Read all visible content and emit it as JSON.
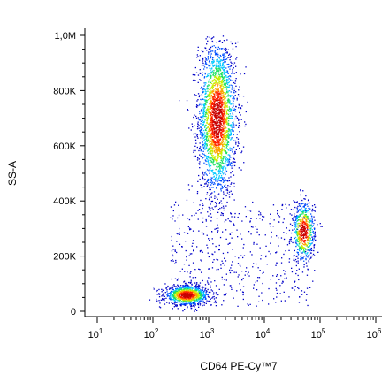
{
  "chart_data": {
    "type": "scatter",
    "subtype": "flow-cytometry-density-dot-plot",
    "xlabel": "CD64 PE-Cy™7",
    "ylabel": "SS-A",
    "x_scale": "log",
    "xlim": [
      10,
      1000000
    ],
    "ylim": [
      0,
      1000000
    ],
    "x_ticks": [
      {
        "value": 10,
        "base": "10",
        "exp": "1"
      },
      {
        "value": 100,
        "base": "10",
        "exp": "2"
      },
      {
        "value": 1000,
        "base": "10",
        "exp": "3"
      },
      {
        "value": 10000,
        "base": "10",
        "exp": "4"
      },
      {
        "value": 100000,
        "base": "10",
        "exp": "5"
      },
      {
        "value": 1000000,
        "base": "10",
        "exp": "6"
      }
    ],
    "y_ticks": [
      {
        "value": 0,
        "label": "0"
      },
      {
        "value": 200000,
        "label": "200K"
      },
      {
        "value": 400000,
        "label": "400K"
      },
      {
        "value": 600000,
        "label": "600K"
      },
      {
        "value": 800000,
        "label": "800K"
      },
      {
        "value": 1000000,
        "label": "1,0M"
      }
    ],
    "grid": false,
    "legend": "none",
    "color_scale": [
      "#0000c8",
      "#0050ff",
      "#00c8ff",
      "#20e060",
      "#c8f000",
      "#ffa000",
      "#ff2000",
      "#c80000"
    ],
    "clusters": [
      {
        "x_center": 1400,
        "y_center": 700000,
        "x_spread_log": 0.17,
        "y_spread": 140000,
        "count": 2600
      },
      {
        "x_center": 400,
        "y_center": 60000,
        "x_spread_log": 0.2,
        "y_spread": 18000,
        "count": 1000
      },
      {
        "x_center": 50000,
        "y_center": 290000,
        "x_spread_log": 0.1,
        "y_spread": 55000,
        "count": 600
      }
    ]
  }
}
